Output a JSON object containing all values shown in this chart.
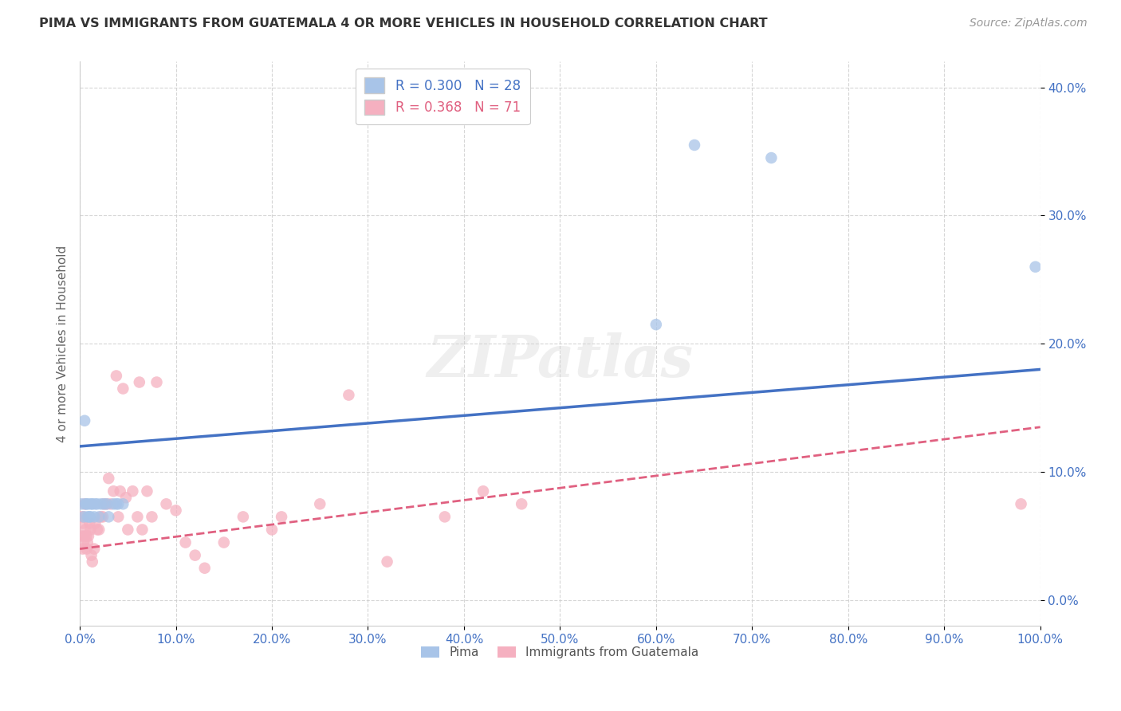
{
  "title": "PIMA VS IMMIGRANTS FROM GUATEMALA 4 OR MORE VEHICLES IN HOUSEHOLD CORRELATION CHART",
  "source": "Source: ZipAtlas.com",
  "xlabel": "",
  "ylabel": "4 or more Vehicles in Household",
  "legend_label1": "Pima",
  "legend_label2": "Immigrants from Guatemala",
  "R1": 0.3,
  "N1": 28,
  "R2": 0.368,
  "N2": 71,
  "color1": "#a8c4e8",
  "color2": "#f5b0c0",
  "line_color1": "#4472c4",
  "line_color2": "#e06080",
  "xlim": [
    0.0,
    1.0
  ],
  "ylim": [
    -0.02,
    0.42
  ],
  "xticks": [
    0.0,
    0.1,
    0.2,
    0.3,
    0.4,
    0.5,
    0.6,
    0.7,
    0.8,
    0.9,
    1.0
  ],
  "yticks": [
    0.0,
    0.1,
    0.2,
    0.3,
    0.4
  ],
  "pima_x": [
    0.002,
    0.004,
    0.005,
    0.006,
    0.007,
    0.008,
    0.009,
    0.01,
    0.011,
    0.012,
    0.013,
    0.015,
    0.016,
    0.018,
    0.02,
    0.022,
    0.025,
    0.028,
    0.03,
    0.035,
    0.038,
    0.04,
    0.045,
    0.6,
    0.64,
    0.72,
    0.995
  ],
  "pima_y": [
    0.075,
    0.065,
    0.14,
    0.075,
    0.075,
    0.065,
    0.075,
    0.065,
    0.065,
    0.075,
    0.075,
    0.065,
    0.075,
    0.075,
    0.065,
    0.075,
    0.075,
    0.075,
    0.065,
    0.075,
    0.075,
    0.075,
    0.075,
    0.215,
    0.355,
    0.345,
    0.26
  ],
  "guatemala_x": [
    0.001,
    0.002,
    0.003,
    0.003,
    0.004,
    0.004,
    0.005,
    0.005,
    0.006,
    0.007,
    0.007,
    0.008,
    0.009,
    0.01,
    0.011,
    0.012,
    0.013,
    0.015,
    0.016,
    0.018,
    0.02,
    0.022,
    0.024,
    0.025,
    0.028,
    0.03,
    0.032,
    0.035,
    0.038,
    0.04,
    0.042,
    0.045,
    0.048,
    0.05,
    0.055,
    0.06,
    0.062,
    0.065,
    0.07,
    0.075,
    0.08,
    0.09,
    0.1,
    0.11,
    0.12,
    0.13,
    0.15,
    0.17,
    0.2,
    0.21,
    0.25,
    0.28,
    0.32,
    0.38,
    0.42,
    0.46,
    0.98
  ],
  "guatemala_y": [
    0.065,
    0.05,
    0.04,
    0.06,
    0.045,
    0.065,
    0.05,
    0.075,
    0.055,
    0.04,
    0.05,
    0.045,
    0.05,
    0.06,
    0.055,
    0.035,
    0.03,
    0.04,
    0.06,
    0.055,
    0.055,
    0.065,
    0.065,
    0.075,
    0.075,
    0.095,
    0.075,
    0.085,
    0.175,
    0.065,
    0.085,
    0.165,
    0.08,
    0.055,
    0.085,
    0.065,
    0.17,
    0.055,
    0.085,
    0.065,
    0.17,
    0.075,
    0.07,
    0.045,
    0.035,
    0.025,
    0.045,
    0.065,
    0.055,
    0.065,
    0.075,
    0.16,
    0.03,
    0.065,
    0.085,
    0.075,
    0.075
  ],
  "trendline1_x0": 0.0,
  "trendline1_x1": 1.0,
  "trendline1_y0": 0.12,
  "trendline1_y1": 0.18,
  "trendline2_x0": 0.0,
  "trendline2_x1": 1.0,
  "trendline2_y0": 0.04,
  "trendline2_y1": 0.135,
  "background_color": "#ffffff",
  "grid_color": "#cccccc",
  "watermark": "ZIPatlas"
}
